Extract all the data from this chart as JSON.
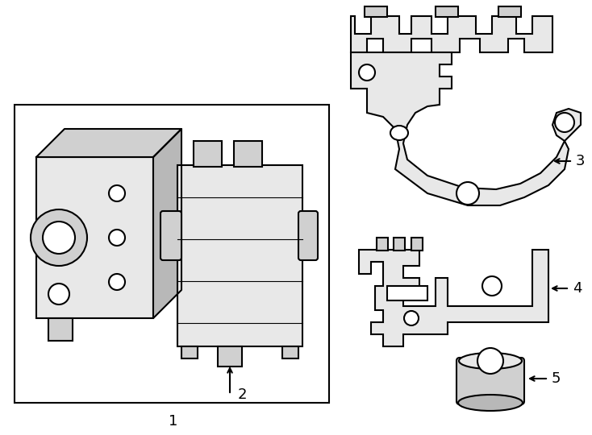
{
  "background_color": "#ffffff",
  "line_color": "#000000",
  "line_width": 1.5,
  "figsize": [
    7.34,
    5.4
  ],
  "dpi": 100
}
